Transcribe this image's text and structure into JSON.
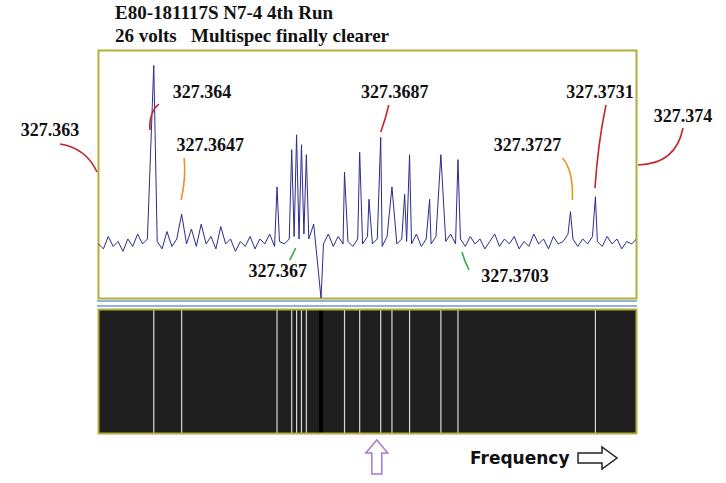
{
  "chart_data": {
    "type": "line",
    "title": "E80-181117S N7-4 4th Run",
    "subtitle": "26 volts   Multispec finally clearer",
    "x_label": "Frequency",
    "color": "#2b2b8f",
    "x": [
      327.363,
      327.3631,
      327.3632,
      327.3633,
      327.3634,
      327.3635,
      327.3636,
      327.3637,
      327.3638,
      327.3639,
      327.364,
      327.36413,
      327.3642,
      327.3643,
      327.3644,
      327.3645,
      327.3646,
      327.3647,
      327.3648,
      327.3649,
      327.365,
      327.3651,
      327.3652,
      327.3653,
      327.3654,
      327.3655,
      327.3656,
      327.3657,
      327.3658,
      327.3659,
      327.366,
      327.3661,
      327.3662,
      327.3663,
      327.3664,
      327.3665,
      327.3666,
      327.36665,
      327.3667,
      327.3668,
      327.3669,
      327.36695,
      327.367,
      327.36705,
      327.3671,
      327.36715,
      327.3672,
      327.36725,
      327.3673,
      327.3674,
      327.36755,
      327.3676,
      327.3677,
      327.3678,
      327.3679,
      327.368,
      327.36803,
      327.3681,
      327.3682,
      327.3683,
      327.36834,
      327.3684,
      327.3685,
      327.36853,
      327.3686,
      327.3687,
      327.36877,
      327.3688,
      327.3689,
      327.369,
      327.3691,
      327.3692,
      327.36926,
      327.3693,
      327.36936,
      327.3694,
      327.3695,
      327.3696,
      327.3697,
      327.36977,
      327.3698,
      327.3699,
      327.37,
      327.3701,
      327.3702,
      327.3703,
      327.37035,
      327.3704,
      327.3705,
      327.3706,
      327.3707,
      327.3708,
      327.3709,
      327.371,
      327.3711,
      327.3712,
      327.3713,
      327.3714,
      327.3715,
      327.3716,
      327.3717,
      327.3718,
      327.3719,
      327.372,
      327.3721,
      327.3722,
      327.3723,
      327.3724,
      327.3725,
      327.3726,
      327.37265,
      327.3727,
      327.3728,
      327.3729,
      327.373,
      327.3731,
      327.37316,
      327.3732,
      327.3733,
      327.3734,
      327.3735,
      327.3736,
      327.3737,
      327.3738,
      327.3739,
      327.374
    ],
    "values": [
      22,
      20,
      25,
      21,
      23,
      19,
      24,
      21,
      26,
      22,
      24,
      94,
      23,
      20,
      27,
      21,
      24,
      34,
      22,
      28,
      21,
      30,
      22,
      25,
      20,
      29,
      22,
      24,
      19,
      23,
      21,
      25,
      20,
      24,
      22,
      26,
      21,
      45,
      23,
      22,
      24,
      60,
      25,
      66,
      24,
      62,
      26,
      58,
      24,
      30,
      0,
      22,
      26,
      21,
      25,
      22,
      51,
      23,
      21,
      24,
      59,
      22,
      25,
      40,
      22,
      24,
      65,
      21,
      25,
      45,
      22,
      24,
      42,
      23,
      58,
      22,
      26,
      21,
      24,
      40,
      22,
      25,
      58,
      23,
      26,
      22,
      56,
      24,
      21,
      25,
      22,
      24,
      20,
      23,
      26,
      21,
      24,
      22,
      25,
      20,
      23,
      21,
      26,
      22,
      24,
      20,
      25,
      22,
      23,
      26,
      35,
      24,
      21,
      24,
      22,
      25,
      41,
      23,
      21,
      25,
      22,
      24,
      20,
      23,
      22,
      24
    ],
    "xlim": [
      327.363,
      327.374
    ],
    "xticks": [],
    "ylim": [
      0,
      100
    ],
    "yticks": [],
    "tick_labels": false,
    "grid": false,
    "annotations": [
      {
        "text": "327.363",
        "x": 327.363,
        "color": "#c0282e"
      },
      {
        "text": "327.364",
        "x": 327.364,
        "color": "#c0282e"
      },
      {
        "text": "327.3647",
        "x": 327.3647,
        "color": "#e8932a"
      },
      {
        "text": "327.367",
        "x": 327.367,
        "color": "#3aa84a"
      },
      {
        "text": "327.3687",
        "x": 327.3687,
        "color": "#c0282e"
      },
      {
        "text": "327.3703",
        "x": 327.3703,
        "color": "#3aa84a"
      },
      {
        "text": "327.3727",
        "x": 327.3727,
        "color": "#e8932a"
      },
      {
        "text": "327.3731",
        "x": 327.3731,
        "color": "#c0282e"
      },
      {
        "text": "327.374",
        "x": 327.374,
        "color": "#c0282e"
      }
    ],
    "pointer_x": 327.3687,
    "waterfall": {
      "bright": [
        327.36413,
        327.3647,
        327.36665,
        327.36695,
        327.36705,
        327.36715,
        327.36725,
        327.36803,
        327.36834,
        327.36877,
        327.369,
        327.36936,
        327.37,
        327.37035,
        327.37316
      ],
      "dark": [
        327.36755
      ]
    }
  }
}
